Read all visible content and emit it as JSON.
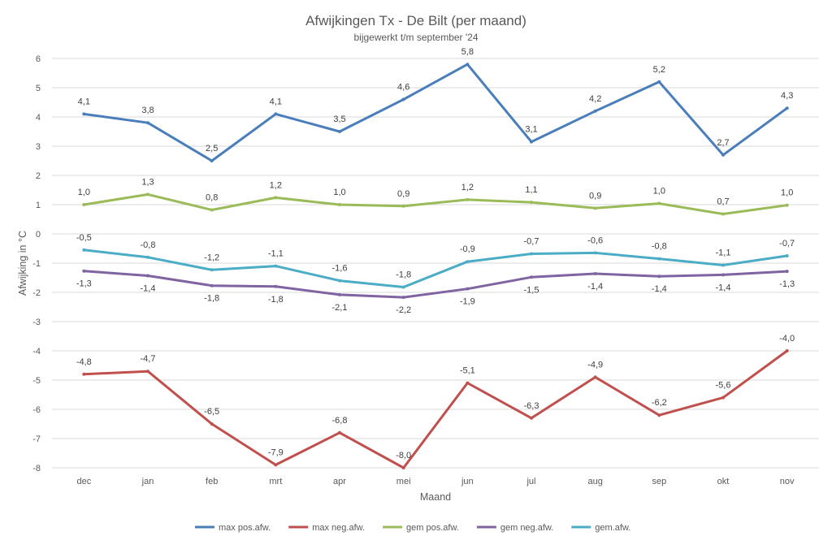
{
  "chart_data": {
    "type": "line",
    "title": "Afwijkingen Tx - De Bilt (per maand)",
    "subtitle": "bijgewerkt t/m september '24",
    "xlabel": "Maand",
    "ylabel": "Afwijking in °C",
    "ylim": [
      -8,
      6
    ],
    "yticks": [
      6,
      5,
      4,
      3,
      2,
      1,
      0,
      -1,
      -2,
      -3,
      -4,
      -5,
      -6,
      -7,
      -8
    ],
    "grid": true,
    "legend_position": "bottom",
    "categories": [
      "dec",
      "jan",
      "feb",
      "mrt",
      "apr",
      "mei",
      "jun",
      "jul",
      "aug",
      "sep",
      "okt",
      "nov"
    ],
    "series": [
      {
        "name": "max pos.afw.",
        "color": "#4a7ebb",
        "values": [
          4.1,
          3.8,
          2.5,
          4.1,
          3.5,
          4.6,
          5.8,
          3.15,
          4.2,
          5.2,
          2.7,
          4.3
        ],
        "labels": [
          "4,1",
          "3,8",
          "2,5",
          "4,1",
          "3,5",
          "4,6",
          "5,8",
          "3,1",
          "4,2",
          "5,2",
          "2,7",
          "4,3"
        ],
        "label_position": "above"
      },
      {
        "name": "max neg.afw.",
        "color": "#c0504d",
        "values": [
          -4.8,
          -4.7,
          -6.5,
          -7.9,
          -6.8,
          -8.0,
          -5.1,
          -6.3,
          -4.9,
          -6.2,
          -5.6,
          -4.0
        ],
        "labels": [
          "-4,8",
          "-4,7",
          "-6,5",
          "-7,9",
          "-6,8",
          "-8,0",
          "-5,1",
          "-6,3",
          "-4,9",
          "-6,2",
          "-5,6",
          "-4,0"
        ],
        "label_position": "above"
      },
      {
        "name": "gem pos.afw.",
        "color": "#9bbb59",
        "values": [
          1.0,
          1.35,
          0.82,
          1.24,
          1.0,
          0.95,
          1.17,
          1.08,
          0.88,
          1.04,
          0.68,
          0.98
        ],
        "labels": [
          "1,0",
          "1,3",
          "0,8",
          "1,2",
          "1,0",
          "0,9",
          "1,2",
          "1,1",
          "0,9",
          "1,0",
          "0,7",
          "1,0"
        ],
        "label_position": "above"
      },
      {
        "name": "gem neg.afw.",
        "color": "#8064a2",
        "values": [
          -1.27,
          -1.43,
          -1.77,
          -1.8,
          -2.08,
          -2.17,
          -1.88,
          -1.48,
          -1.36,
          -1.45,
          -1.4,
          -1.28
        ],
        "labels": [
          "-1,3",
          "-1,4",
          "-1,8",
          "-1,8",
          "-2,1",
          "-2,2",
          "-1,9",
          "-1,5",
          "-1,4",
          "-1,4",
          "-1,4",
          "-1,3"
        ],
        "label_position": "below"
      },
      {
        "name": "gem.afw.",
        "color": "#4bacc6",
        "values": [
          -0.55,
          -0.8,
          -1.23,
          -1.1,
          -1.6,
          -1.82,
          -0.95,
          -0.68,
          -0.65,
          -0.85,
          -1.07,
          -0.75
        ],
        "labels": [
          "-0,5",
          "-0,8",
          "-1,2",
          "-1,1",
          "-1,6",
          "-1,8",
          "-0,9",
          "-0,7",
          "-0,6",
          "-0,8",
          "-1,1",
          "-0,7"
        ],
        "label_position": "above"
      }
    ]
  }
}
